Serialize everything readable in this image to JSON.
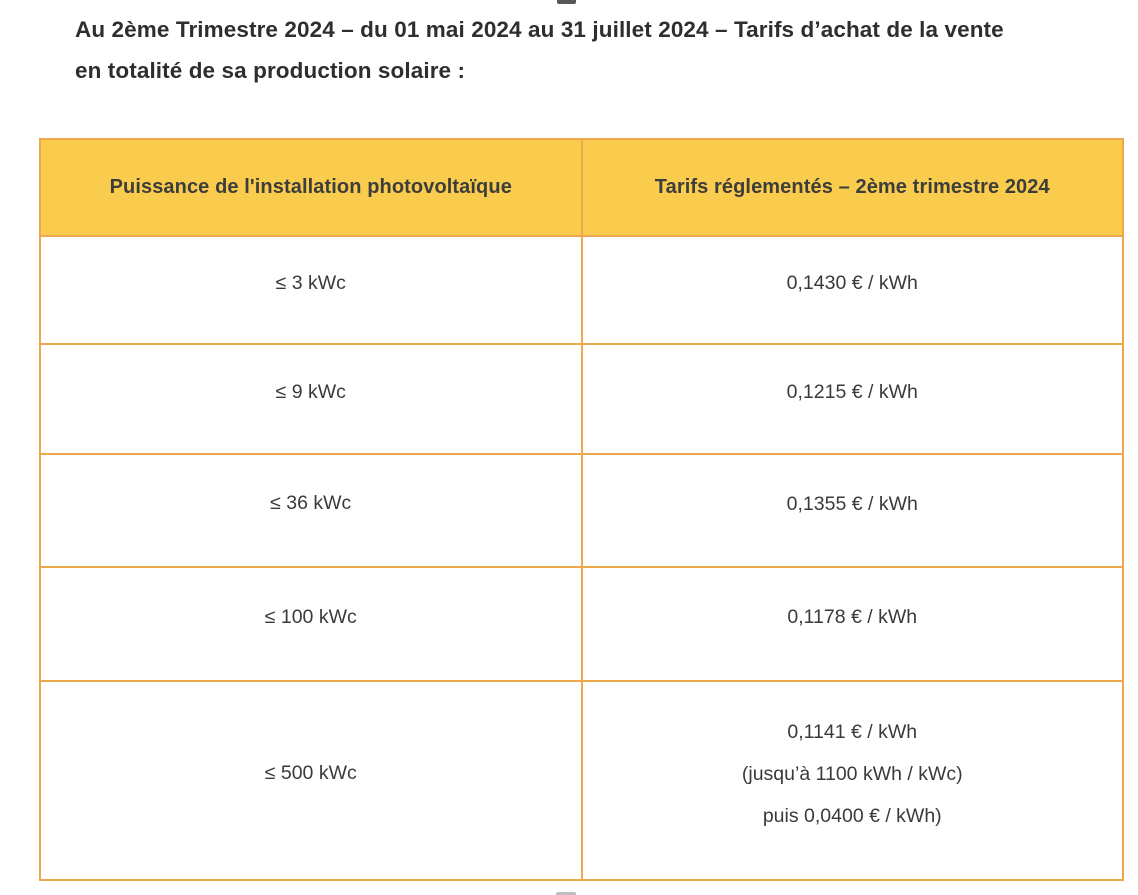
{
  "heading": {
    "line1": "Au 2ème Trimestre 2024 – du 01 mai 2024 au 31 juillet 2024 – Tarifs d’achat de la vente",
    "line2": "en totalité de sa production solaire :"
  },
  "table": {
    "headers": [
      "Puissance de l'installation photovoltaïque",
      "Tarifs réglementés – 2ème trimestre 2024"
    ],
    "rows": [
      {
        "power": "≤ 3 kWc",
        "tariff_lines": [
          "0,1430 € / kWh"
        ]
      },
      {
        "power": "≤ 9 kWc",
        "tariff_lines": [
          "0,1215 € / kWh"
        ]
      },
      {
        "power": "≤ 36 kWc",
        "tariff_lines": [
          "0,1355 € / kWh"
        ]
      },
      {
        "power": "≤ 100 kWc",
        "tariff_lines": [
          "0,1178 € / kWh"
        ]
      },
      {
        "power": "≤ 500 kWc",
        "tariff_lines": [
          "0,1141 € / kWh",
          "(jusqu’à 1100 kWh / kWc)",
          "puis 0,0400 € / kWh)"
        ]
      }
    ]
  },
  "colors": {
    "header_bg": "#F9CC4D",
    "border": "#EDA84D",
    "text": "#3A3A3A",
    "heading_text": "#2E2E2E"
  }
}
